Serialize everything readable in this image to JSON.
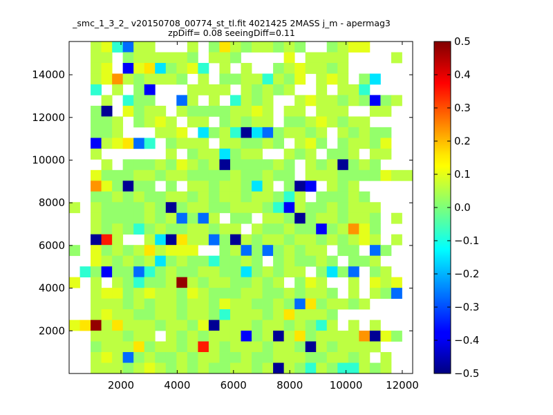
{
  "chart_data": {
    "type": "heatmap",
    "title": "_smc_1_3_2_ v20150708_00774_st_tl.fit 4021425 2MASS j_m - apermag3",
    "subtitle": "zpDiff= 0.08 seeingDiff=0.11",
    "xlabel": "",
    "ylabel": "",
    "xlim": [
      157,
      12370
    ],
    "ylim": [
      0,
      15558
    ],
    "x_ticks": [
      2000,
      4000,
      6000,
      8000,
      10000,
      12000
    ],
    "x_tick_labels": [
      "2000",
      "4000",
      "6000",
      "8000",
      "10000",
      "12000"
    ],
    "y_ticks": [
      2000,
      4000,
      6000,
      8000,
      10000,
      12000,
      14000
    ],
    "y_tick_labels": [
      "2000",
      "4000",
      "6000",
      "8000",
      "10000",
      "12000",
      "14000"
    ],
    "colorbar": {
      "range": [
        -0.5,
        0.5
      ],
      "colormap": "jet",
      "ticks": [
        0.5,
        0.4,
        0.3,
        0.2,
        0.1,
        0.0,
        -0.1,
        -0.2,
        -0.3,
        -0.4,
        -0.5
      ],
      "tick_labels": [
        "0.5",
        "0.4",
        "0.3",
        "0.2",
        "0.1",
        "0.0",
        "−0.1",
        "−0.2",
        "−0.3",
        "−0.4",
        "−0.5"
      ]
    },
    "grid_columns": 32,
    "grid_rows_count": 31,
    "cell_value_legend": {
      ".": null,
      "m": 0.0,
      "g": 0.02,
      "l": 0.06,
      "y": 0.1,
      "Y": 0.15,
      "o": 0.23,
      "r": 0.35,
      "R": 0.48,
      "c": -0.08,
      "C": -0.15,
      "b": -0.27,
      "B": -0.38,
      "N": -0.48
    },
    "grid_rows_top_to_bottom": [
      "..lycbll...l.gYlgllglg..glyy....",
      "..ll.glllllg.llg....y.llll....l.",
      "..ly.ByYCglyc.l.l..glyllgl......",
      "..lyolglllg.l.ggllclgy.lyl.gC...",
      "..c.l.gB...llll.lglgl..l.llc....",
      "...l.cgg..bl.l.clgl..lyllglgBgl.",
      "..gN.ygll.lggggllyl.ll.lll..ll..",
      "..ggl.glyl.ll.glgll.gglylgll....",
      "..ggl...lly.CglcNCbgllgl.lglgg..",
      "..BlyYbc.glll.llgglg.lyg.gllgy..",
      "..l......l.gllCgll..lgl.ggl.ll..",
      "...l.ggglgylglNgggglg.lglNglg...",
      "..ygggllgllgggglgglgg.lllggggyll",
      "..oygNgg.g.llgllgCl.gNB.lgl.....",
      "..gglglggllglgllgllgcl.ggglg....",
      "l.lgggglgNgllgglllgcBlgglglll...",
      "..lgggglglbgbl.gg.llgNgllgllg.l.",
      "..lglgcglggllgll.lgglggBgloyg...",
      "..Nrl..lCNYllbgNlgllgllglglyl.l.",
      "g.yglglYlyyy..glbgbglgll.gg.bg..",
      "..ylglglCglggcgglg.glgglg.ggl...",
      ".cgBggbcglggllggCglgll.gCgb.gl..",
      "y.l.lgcgglRlgllgglgl.gyl..l.yly.",
      "..lyyglyllgylgggllgglgllg.l.lgb.",
      "..lllglgllgllgyllgglgbYgllgl....",
      "..lyllggllgllgclllglYlllg.......",
      "yYRlYlllgllgyNlllgllglgcl.l.l...",
      "..lllgll.lglglllBglNlYglllloNyg.",
      "..glllYgllglrlglllgllgNlgllll...",
      "..lylbglgglgllgglgglllggllgl.l..",
      "..lllglylglglggllglNlgclgcclgl.."
    ]
  }
}
